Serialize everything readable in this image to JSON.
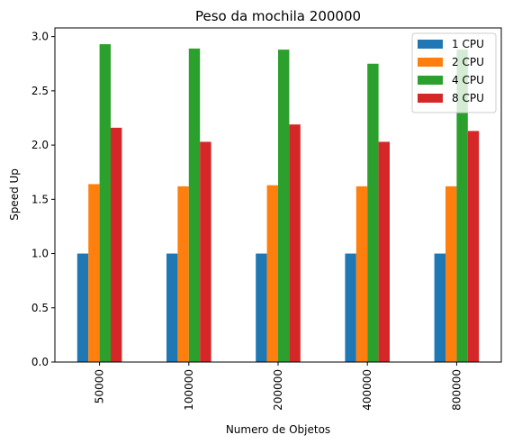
{
  "chart_data": {
    "type": "bar",
    "title": "Peso da mochila 200000",
    "xlabel": "Numero de Objetos",
    "ylabel": "Speed Up",
    "categories": [
      "50000",
      "100000",
      "200000",
      "400000",
      "800000"
    ],
    "ylim": [
      0,
      3.08
    ],
    "yticks": [
      0.0,
      0.5,
      1.0,
      1.5,
      2.0,
      2.5,
      3.0
    ],
    "ytick_labels": [
      "0.0",
      "0.5",
      "1.0",
      "1.5",
      "2.0",
      "2.5",
      "3.0"
    ],
    "grid": false,
    "legend_position": "top-right",
    "series": [
      {
        "name": "1 CPU",
        "color": "#1f77b4",
        "values": [
          1.0,
          1.0,
          1.0,
          1.0,
          1.0
        ]
      },
      {
        "name": "2 CPU",
        "color": "#ff7f0e",
        "values": [
          1.64,
          1.62,
          1.63,
          1.62,
          1.62
        ]
      },
      {
        "name": "4 CPU",
        "color": "#2ca02c",
        "values": [
          2.93,
          2.89,
          2.88,
          2.75,
          2.88
        ]
      },
      {
        "name": "8 CPU",
        "color": "#d62728",
        "values": [
          2.16,
          2.03,
          2.19,
          2.03,
          2.13
        ]
      }
    ]
  }
}
